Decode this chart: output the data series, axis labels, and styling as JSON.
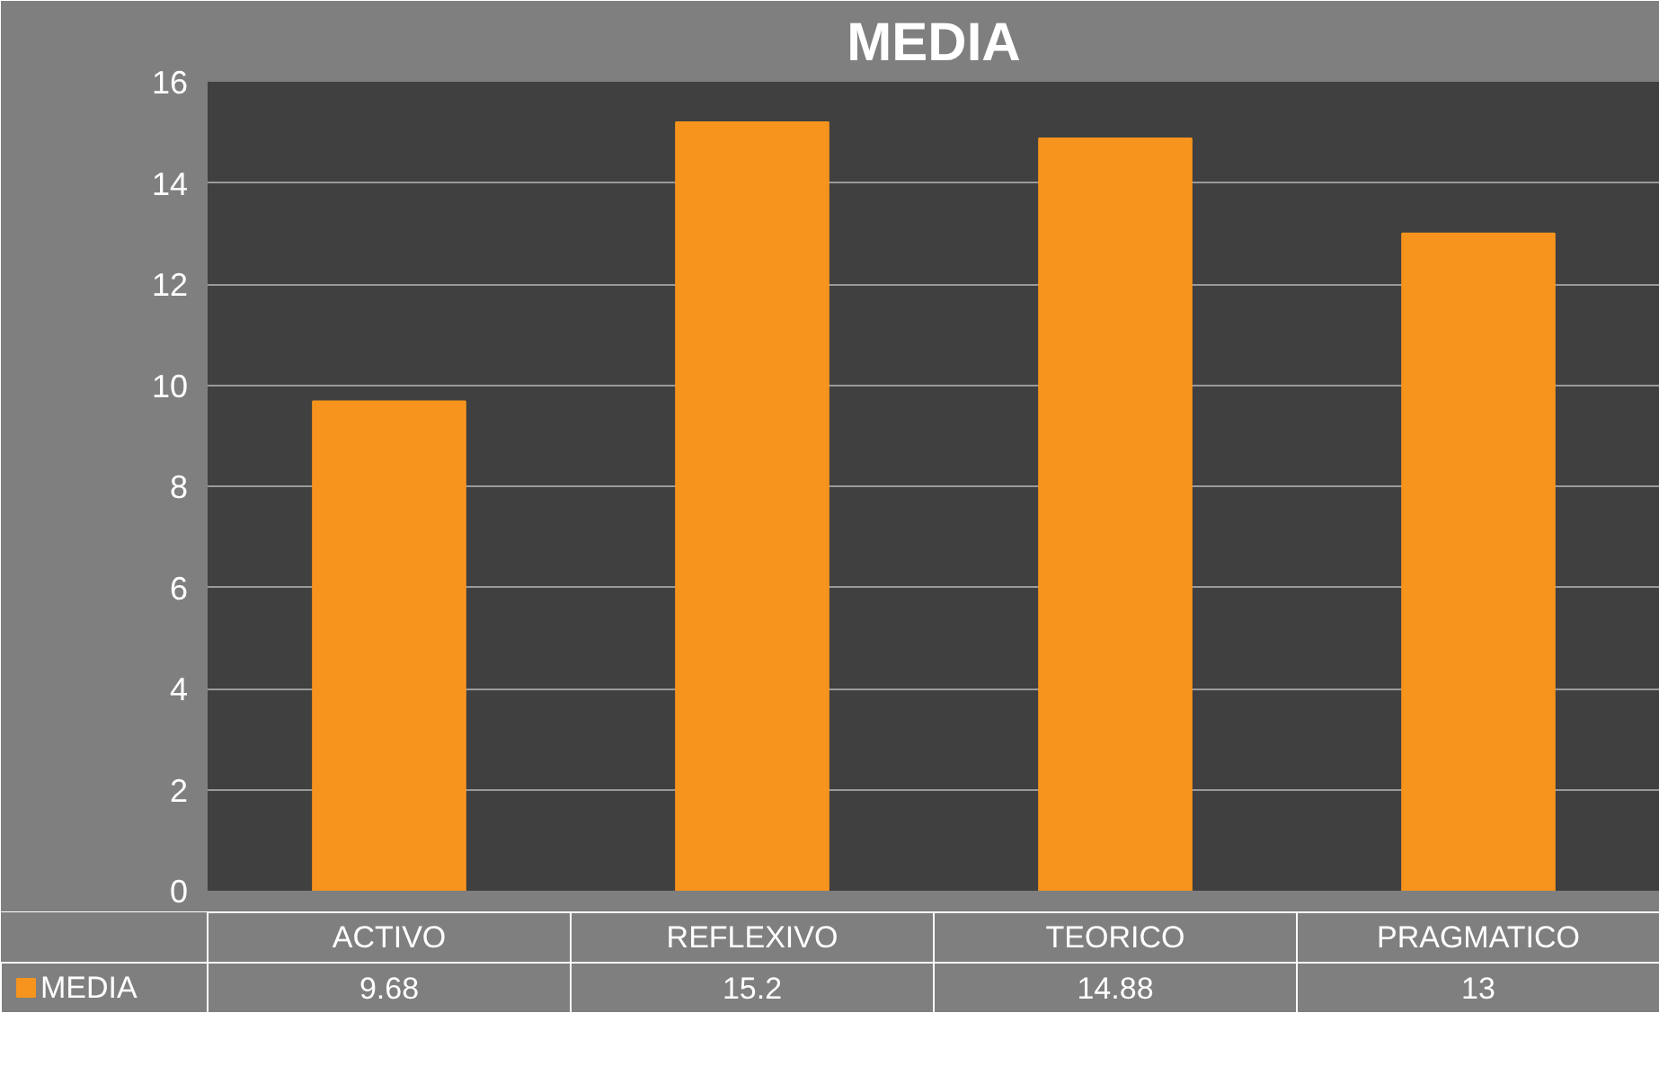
{
  "chart_data": {
    "type": "bar",
    "title": "MEDIA",
    "categories": [
      "ACTIVO",
      "REFLEXIVO",
      "TEORICO",
      "PRAGMATICO"
    ],
    "series": [
      {
        "name": "MEDIA",
        "color": "#f7941d",
        "values": [
          9.68,
          15.2,
          14.88,
          13
        ]
      }
    ],
    "ylim": [
      0,
      16
    ],
    "yticks": [
      0,
      2,
      4,
      6,
      8,
      10,
      12,
      14,
      16
    ],
    "grid": "y",
    "legend": "bottom",
    "data_labels": true
  }
}
